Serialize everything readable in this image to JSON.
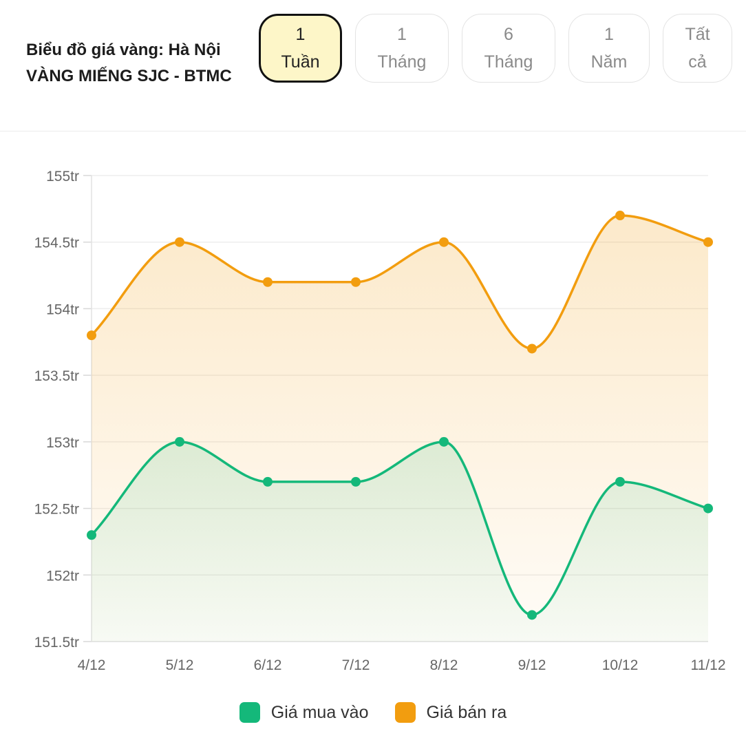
{
  "header": {
    "title_line1": "Biểu đồ giá vàng: Hà Nội",
    "title_line2": "VÀNG MIẾNG SJC - BTMC"
  },
  "range_buttons": [
    {
      "line1": "1",
      "line2": "Tuần",
      "active": true
    },
    {
      "line1": "1",
      "line2": "Tháng",
      "active": false
    },
    {
      "line1": "6",
      "line2": "Tháng",
      "active": false
    },
    {
      "line1": "1",
      "line2": "Năm",
      "active": false
    },
    {
      "line1": "Tất",
      "line2": "cả",
      "active": false
    }
  ],
  "chart_data": {
    "type": "area",
    "categories": [
      "4/12",
      "5/12",
      "6/12",
      "7/12",
      "8/12",
      "9/12",
      "10/12",
      "11/12"
    ],
    "series": [
      {
        "name": "Giá mua vào",
        "color": "#14b87a",
        "values": [
          152.3,
          153.0,
          152.7,
          152.7,
          153.0,
          151.7,
          152.7,
          152.5
        ]
      },
      {
        "name": "Giá bán ra",
        "color": "#f29d0f",
        "values": [
          153.8,
          154.5,
          154.2,
          154.2,
          154.5,
          153.7,
          154.7,
          154.5
        ]
      }
    ],
    "ylim": [
      151.5,
      155
    ],
    "yticks": [
      {
        "value": 155,
        "label": "155tr"
      },
      {
        "value": 154.5,
        "label": "154.5tr"
      },
      {
        "value": 154,
        "label": "154tr"
      },
      {
        "value": 153.5,
        "label": "153.5tr"
      },
      {
        "value": 153,
        "label": "153tr"
      },
      {
        "value": 152.5,
        "label": "152.5tr"
      },
      {
        "value": 152,
        "label": "152tr"
      },
      {
        "value": 151.5,
        "label": "151.5tr"
      }
    ],
    "grid": true,
    "legend": "bottom-center",
    "title": "",
    "xlabel": "",
    "ylabel": ""
  }
}
